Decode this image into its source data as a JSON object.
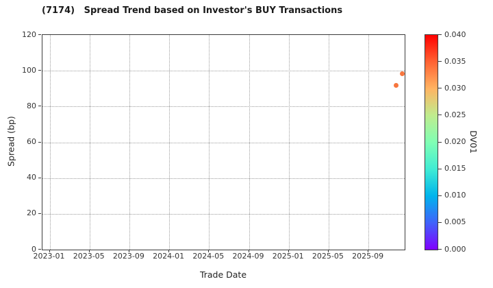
{
  "title": "(7174)   Spread Trend based on Investor's BUY Transactions",
  "chart_data": {
    "type": "scatter",
    "title": "(7174)   Spread Trend based on Investor's BUY Transactions",
    "xlabel": "Trade Date",
    "ylabel": "Spread (bp)",
    "ylim": [
      0,
      120
    ],
    "y_ticks": [
      0,
      20,
      40,
      60,
      80,
      100,
      120
    ],
    "x_ticks": [
      "2023-01",
      "2023-05",
      "2023-09",
      "2024-01",
      "2024-05",
      "2024-09",
      "2025-01",
      "2025-05",
      "2025-09"
    ],
    "grid": true,
    "grid_style": "dotted",
    "marker_color": "#F7763E",
    "points": [
      {
        "date": "2025-11-25",
        "spread_bp": 92.0,
        "dv01": 0.033
      },
      {
        "date": "2025-12-13",
        "spread_bp": 98.5,
        "dv01": 0.033
      }
    ],
    "colorbar": {
      "label": "DV01",
      "min": 0.0,
      "max": 0.04,
      "ticks": [
        "0.000",
        "0.005",
        "0.010",
        "0.015",
        "0.020",
        "0.025",
        "0.030",
        "0.035",
        "0.040"
      ],
      "colormap": "rainbow",
      "gradient_stops": [
        {
          "pos": 0.0,
          "color": "#8000FF"
        },
        {
          "pos": 0.125,
          "color": "#4062FA"
        },
        {
          "pos": 0.25,
          "color": "#00B4EC"
        },
        {
          "pos": 0.375,
          "color": "#40ECD4"
        },
        {
          "pos": 0.5,
          "color": "#80FFB4"
        },
        {
          "pos": 0.625,
          "color": "#BFEC8E"
        },
        {
          "pos": 0.75,
          "color": "#FFB462"
        },
        {
          "pos": 0.875,
          "color": "#FF6232"
        },
        {
          "pos": 1.0,
          "color": "#FF0000"
        }
      ]
    }
  }
}
